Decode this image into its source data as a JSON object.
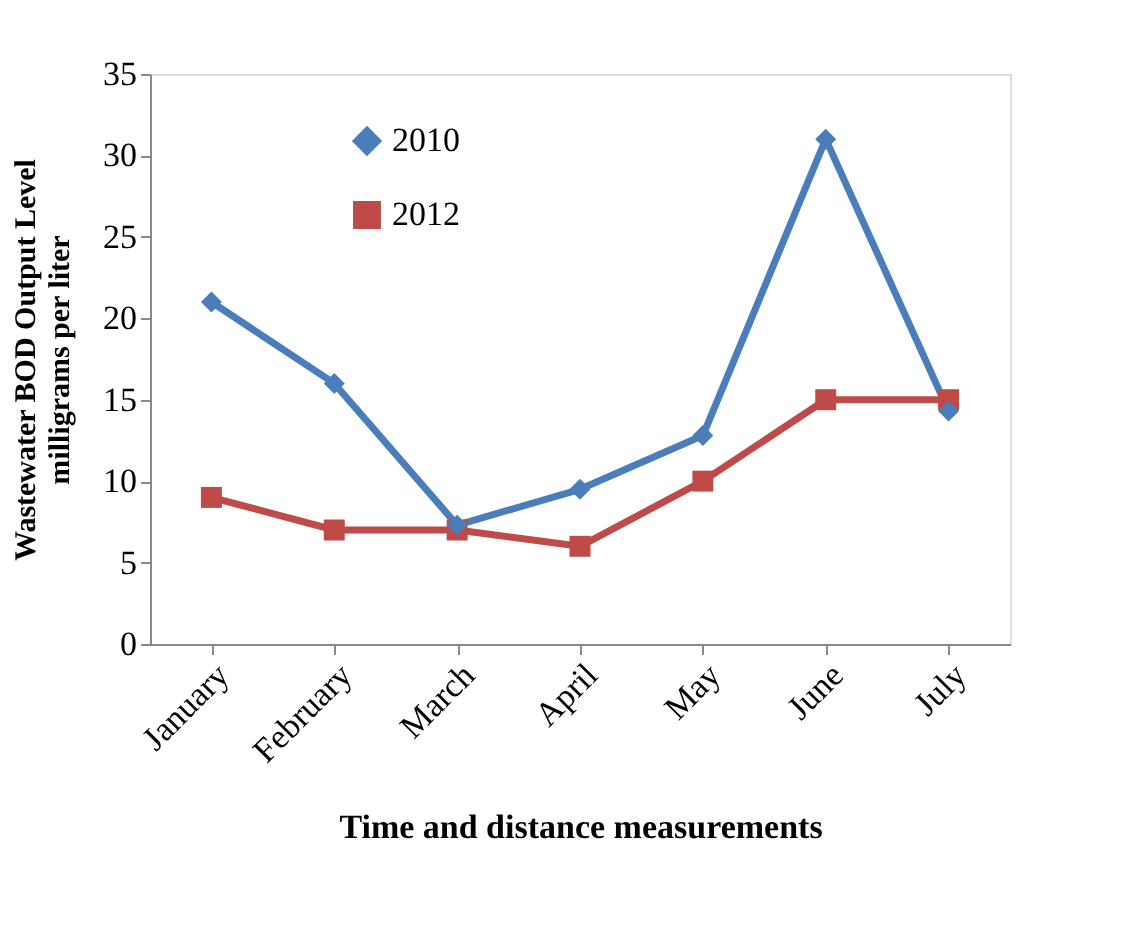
{
  "chart_data": {
    "type": "line",
    "xlabel": "Time and distance measurements",
    "ylabel": "Wastewater BOD Output Level\nmilligrams per liter",
    "categories": [
      "January",
      "February",
      "March",
      "April",
      "May",
      "June",
      "July"
    ],
    "series": [
      {
        "name": "2010",
        "color": "#4a7ebb",
        "marker": "diamond",
        "values": [
          21,
          16,
          7.3,
          9.5,
          12.8,
          31,
          14.3
        ]
      },
      {
        "name": "2012",
        "color": "#be4b48",
        "marker": "square",
        "values": [
          9,
          7,
          7,
          6,
          10,
          15,
          15
        ]
      }
    ],
    "ylim": [
      0,
      35
    ],
    "yticks": [
      0,
      5,
      10,
      15,
      20,
      25,
      30,
      35
    ],
    "grid": false,
    "legend": "top",
    "line_style": "solid"
  }
}
